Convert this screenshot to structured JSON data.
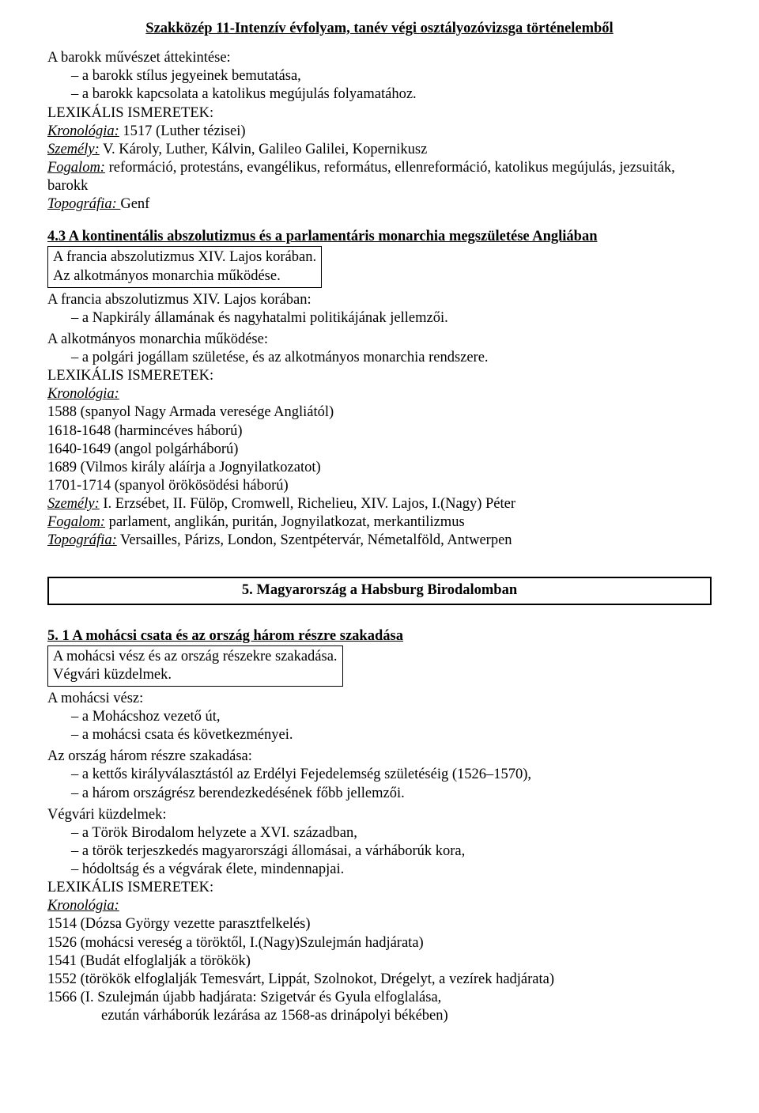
{
  "page_title": "Szakközép  11-Intenzív évfolyam, tanév végi osztályozóvizsga történelemből",
  "s1": {
    "intro1": "A barokk művészet áttekintése:",
    "i1": "a barokk stílus jegyeinek bemutatása,",
    "i2": "a barokk kapcsolata a katolikus megújulás folyamatához.",
    "lex": "LEXIKÁLIS  ISMERETEK:",
    "kron_label": "Kronológia:",
    "kron_text": " 1517 (Luther tézisei)",
    "szem_label": "Személy:",
    "szem_text": " V. Károly, Luther, Kálvin, Galileo Galilei, Kopernikusz",
    "fog_label": "Fogalom:",
    "fog_text": " reformáció, protestáns, evangélikus, református, ellenreformáció, katolikus megújulás, jezsuiták, barokk",
    "topo_label": "Topográfia: ",
    "topo_text": " Genf"
  },
  "s2": {
    "heading": "4.3 A kontinentális abszolutizmus és a parlamentáris monarchia megszületése Angliában",
    "box1": "A francia abszolutizmus XIV. Lajos korában.",
    "box2": "Az alkotmányos monarchia működése.",
    "p1": "A francia abszolutizmus XIV. Lajos korában:",
    "p1i1": "a Napkirály államának és nagyhatalmi politikájának jellemzői.",
    "p2": "A alkotmányos monarchia működése:",
    "p2i1": "a polgári jogállam születése, és az alkotmányos monarchia rendszere.",
    "lex": "LEXIKÁLIS  ISMERETEK:",
    "kron_label": "Kronológia:",
    "k1": "1588 (spanyol Nagy Armada veresége Angliától)",
    "k2": "1618-1648 (harmincéves háború)",
    "k3": "1640-1649 (angol polgárháború)",
    "k4": "1689 (Vilmos király aláírja a Jognyilatkozatot)",
    "k5": "1701-1714 (spanyol örökösödési háború)",
    "szem_label": "Személy:",
    "szem_text": " I. Erzsébet, II. Fülöp, Cromwell, Richelieu, XIV. Lajos, I.(Nagy) Péter",
    "fog_label": "Fogalom:",
    "fog_text": " parlament, anglikán, puritán, Jognyilatkozat, merkantilizmus",
    "topo_label": "Topográfia:",
    "topo_text": " Versailles, Párizs, London, Szentpétervár, Németalföld, Antwerpen"
  },
  "chapter5": "5. Magyarország a Habsburg Birodalomban",
  "s3": {
    "heading": "5. 1 A mohácsi csata és az ország három részre szakadása",
    "box1": "A mohácsi vész és az ország részekre szakadása.",
    "box2": "Végvári küzdelmek.",
    "p1": "A mohácsi vész:",
    "p1i1": "a Mohácshoz vezető út,",
    "p1i2": "a mohácsi csata és következményei.",
    "p2": "Az ország három részre szakadása:",
    "p2i1": "a kettős királyválasztástól az Erdélyi Fejedelemség születéséig (1526–1570),",
    "p2i2": "a három országrész berendezkedésének főbb jellemzői.",
    "p3": "Végvári küzdelmek:",
    "p3i1": "a Török Birodalom helyzete a XVI. században,",
    "p3i2": "a török terjeszkedés magyarországi állomásai, a várháborúk kora,",
    "p3i3": "hódoltság és a végvárak élete, mindennapjai.",
    "lex": "LEXIKÁLIS  ISMERETEK:",
    "kron_label": "Kronológia:",
    "k1": "1514 (Dózsa György vezette parasztfelkelés)",
    "k2": "1526 (mohácsi vereség a töröktől, I.(Nagy)Szulejmán hadjárata)",
    "k3": "1541 (Budát elfoglalják a törökök)",
    "k4": "1552 (törökök elfoglalják Temesvárt, Lippát, Szolnokot, Drégelyt,  a vezírek hadjárata)",
    "k5": "1566 (I. Szulejmán újabb hadjárata: Szigetvár és Gyula elfoglalása,",
    "k5b": "ezután várháborúk lezárása az 1568-as drinápolyi békében)"
  }
}
